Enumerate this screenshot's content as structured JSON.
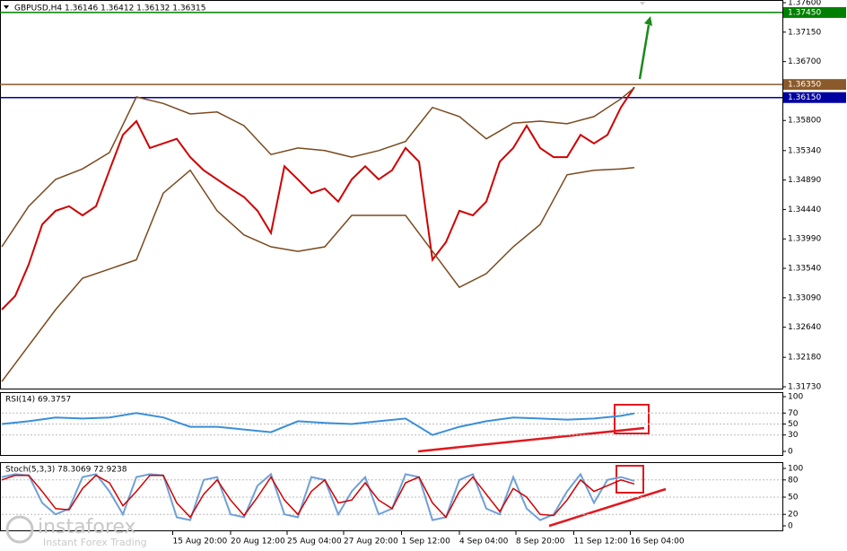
{
  "chart_data": [
    {
      "type": "line",
      "title": "GBPUSD,H4  1.36146 1.36412 1.36132 1.36315",
      "x": [
        0,
        1,
        2,
        3,
        4,
        5,
        6,
        7,
        8,
        9,
        10,
        11,
        12,
        13,
        14,
        15,
        16,
        17,
        18,
        19,
        20,
        21,
        22,
        23,
        24,
        25,
        26,
        27,
        28,
        29,
        30,
        31,
        32,
        33,
        34,
        35,
        36,
        37,
        38,
        39,
        40,
        41,
        42,
        43,
        44,
        45,
        46,
        47
      ],
      "xlim": [
        0,
        58
      ],
      "xticks": [
        {
          "value": 12.7,
          "label": "15 Aug 20:00"
        },
        {
          "value": 17,
          "label": "20 Aug 12:00"
        },
        {
          "value": 21.2,
          "label": "25 Aug 04:00"
        },
        {
          "value": 25.4,
          "label": "27 Aug 20:00"
        },
        {
          "value": 29.7,
          "label": "1 Sep 12:00"
        },
        {
          "value": 34,
          "label": "4 Sep 04:00"
        },
        {
          "value": 38.2,
          "label": "8 Sep 20:00"
        },
        {
          "value": 42.5,
          "label": "11 Sep 12:00"
        },
        {
          "value": 46.7,
          "label": "16 Sep 04:00"
        }
      ],
      "ylim": [
        1.3173,
        1.376
      ],
      "yticks": [
        {
          "value": 1.376,
          "label": "1.37600"
        },
        {
          "value": 1.3715,
          "label": "1.37150"
        },
        {
          "value": 1.367,
          "label": "1.36700"
        },
        {
          "value": 1.358,
          "label": "1.35800"
        },
        {
          "value": 1.3534,
          "label": "1.35340"
        },
        {
          "value": 1.3489,
          "label": "1.34890"
        },
        {
          "value": 1.3444,
          "label": "1.34440"
        },
        {
          "value": 1.3399,
          "label": "1.33990"
        },
        {
          "value": 1.3354,
          "label": "1.33540"
        },
        {
          "value": 1.3309,
          "label": "1.33090"
        },
        {
          "value": 1.3264,
          "label": "1.32640"
        },
        {
          "value": 1.3218,
          "label": "1.32180"
        },
        {
          "value": 1.3173,
          "label": "1.31730"
        }
      ],
      "levels": [
        {
          "value": 1.3745,
          "label": "1.37450",
          "color": "#008000"
        },
        {
          "value": 1.3635,
          "label": "1.36350",
          "color": "#8b5a2b"
        },
        {
          "value": 1.3615,
          "label": "1.36150",
          "color": "#0000a0"
        }
      ],
      "series": [
        {
          "color": "#d00000",
          "values": [
            1.3291,
            1.3312,
            1.336,
            1.3421,
            1.3442,
            1.3449,
            1.3435,
            1.3449,
            1.3504,
            1.3558,
            1.3579,
            1.3538,
            1.3545,
            1.3552,
            1.3524,
            1.3504,
            1.349,
            1.3476,
            1.3463,
            1.3442,
            1.3408,
            1.351,
            1.349,
            1.3469,
            1.3476,
            1.3456,
            1.349,
            1.351,
            1.349,
            1.3504,
            1.3538,
            1.3517,
            1.3367,
            1.3394,
            1.3442,
            1.3435,
            1.3456,
            1.3517,
            1.3538,
            1.3572,
            1.3538,
            1.3524,
            1.3524,
            1.3558,
            1.3545,
            1.3558,
            1.36,
            1.3631
          ]
        },
        {
          "color": "#7a4a1e",
          "x": [
            0,
            2,
            4,
            6,
            8,
            10,
            12,
            14,
            16,
            18,
            20,
            22,
            24,
            26,
            28,
            30,
            32,
            34,
            36,
            38,
            40,
            42,
            44,
            46,
            47
          ],
          "values": [
            1.3387,
            1.3449,
            1.349,
            1.3506,
            1.3531,
            1.3616,
            1.3606,
            1.359,
            1.3593,
            1.3572,
            1.3528,
            1.3538,
            1.3534,
            1.3524,
            1.3534,
            1.3548,
            1.36,
            1.3586,
            1.3552,
            1.3576,
            1.3579,
            1.3575,
            1.3586,
            1.3613,
            1.363
          ]
        },
        {
          "color": "#7a4a1e",
          "x": [
            0,
            2,
            4,
            6,
            8,
            10,
            12,
            14,
            16,
            18,
            20,
            22,
            24,
            26,
            28,
            30,
            32,
            34,
            36,
            38,
            40,
            42,
            44,
            46,
            47
          ],
          "values": [
            1.3181,
            1.3236,
            1.3291,
            1.3339,
            1.3353,
            1.3367,
            1.3469,
            1.3504,
            1.3442,
            1.3405,
            1.3387,
            1.338,
            1.3387,
            1.3435,
            1.3435,
            1.3435,
            1.338,
            1.3325,
            1.3346,
            1.3387,
            1.3421,
            1.3497,
            1.3504,
            1.3506,
            1.3508
          ]
        }
      ]
    },
    {
      "type": "line",
      "title": "RSI(14) 69.3757",
      "x": [
        0,
        2,
        4,
        6,
        8,
        10,
        12,
        14,
        16,
        18,
        20,
        22,
        24,
        26,
        28,
        30,
        32,
        34,
        36,
        38,
        40,
        42,
        44,
        46,
        47
      ],
      "xlim": [
        0,
        58
      ],
      "ylim": [
        0,
        100
      ],
      "yticks": [
        0,
        30,
        50,
        70,
        100
      ],
      "grid": true,
      "series": [
        {
          "color": "#3a8fd8",
          "values": [
            50,
            55,
            62,
            60,
            62,
            70,
            62,
            45,
            45,
            40,
            35,
            55,
            52,
            50,
            55,
            60,
            30,
            45,
            55,
            62,
            60,
            58,
            60,
            65,
            69.38
          ]
        }
      ]
    },
    {
      "type": "line",
      "title": "Stoch(5,3,3) 78.3069 72.9238",
      "x": [
        0,
        1,
        2,
        3,
        4,
        5,
        6,
        7,
        8,
        9,
        10,
        11,
        12,
        13,
        14,
        15,
        16,
        17,
        18,
        19,
        20,
        21,
        22,
        23,
        24,
        25,
        26,
        27,
        28,
        29,
        30,
        31,
        32,
        33,
        34,
        35,
        36,
        37,
        38,
        39,
        40,
        41,
        42,
        43,
        44,
        45,
        46,
        47
      ],
      "xlim": [
        0,
        58
      ],
      "ylim": [
        0,
        100
      ],
      "yticks": [
        0,
        20,
        50,
        80,
        100
      ],
      "grid": true,
      "series": [
        {
          "color": "#6fa0d8",
          "values": [
            85,
            90,
            88,
            40,
            20,
            30,
            85,
            90,
            60,
            20,
            85,
            90,
            88,
            15,
            10,
            80,
            85,
            20,
            15,
            70,
            90,
            20,
            15,
            85,
            80,
            20,
            60,
            85,
            20,
            30,
            90,
            85,
            10,
            15,
            80,
            90,
            30,
            20,
            85,
            30,
            10,
            20,
            60,
            90,
            40,
            80,
            85,
            78.31
          ]
        },
        {
          "color": "#d00000",
          "values": [
            80,
            88,
            88,
            60,
            30,
            28,
            65,
            88,
            75,
            35,
            60,
            88,
            88,
            40,
            15,
            55,
            80,
            45,
            18,
            50,
            85,
            45,
            20,
            60,
            80,
            40,
            45,
            75,
            45,
            30,
            75,
            85,
            40,
            15,
            60,
            85,
            55,
            25,
            65,
            50,
            20,
            18,
            45,
            80,
            60,
            70,
            80,
            72.92
          ]
        }
      ]
    }
  ],
  "watermark": {
    "brand": "instaforex",
    "tagline": "Instant Forex Trading"
  }
}
